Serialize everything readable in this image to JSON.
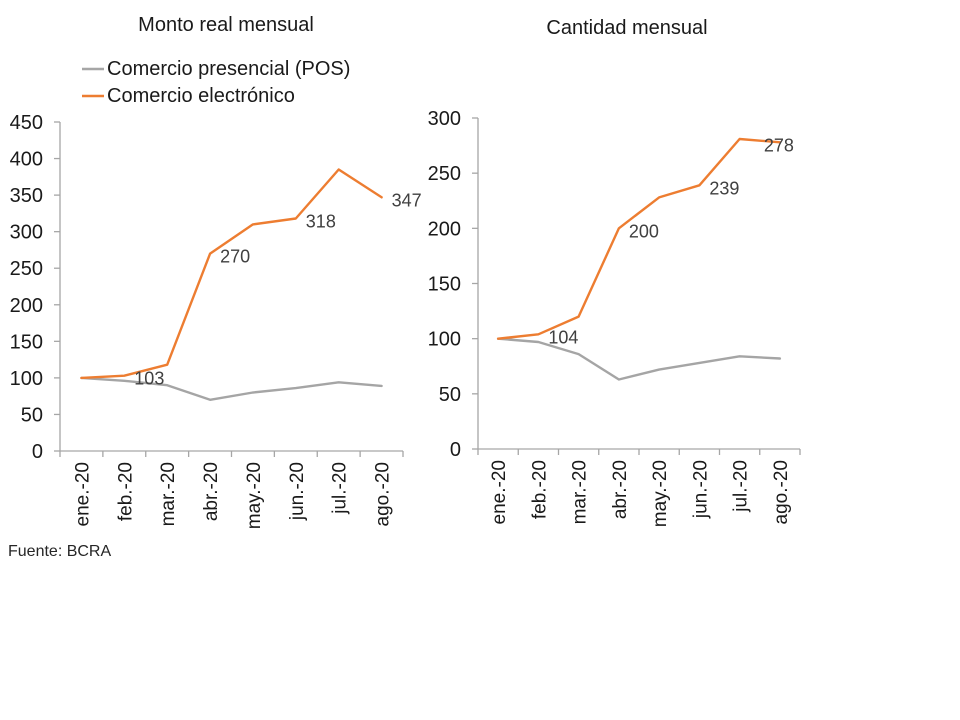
{
  "page": {
    "source_note": "Fuente: BCRA",
    "background_color": "#ffffff",
    "text_color": "#1a1a1a",
    "axis_color": "#a6a6a6",
    "data_label_color": "#404040"
  },
  "legend": {
    "items": [
      {
        "label": "Comercio presencial (POS)",
        "color": "#a6a6a6"
      },
      {
        "label": "Comercio electrónico",
        "color": "#ed7d31"
      }
    ]
  },
  "chart_data": [
    {
      "type": "line",
      "title": "Monto real mensual",
      "categories": [
        "ene.-20",
        "feb.-20",
        "mar.-20",
        "abr.-20",
        "may.-20",
        "jun.-20",
        "jul.-20",
        "ago.-20"
      ],
      "series": [
        {
          "name": "Comercio presencial (POS)",
          "color": "#a5a5a5",
          "values": [
            100,
            96,
            90,
            70,
            80,
            86,
            94,
            89
          ],
          "labeled_indices": []
        },
        {
          "name": "Comercio electrónico",
          "color": "#ed7d31",
          "values": [
            100,
            103,
            118,
            270,
            310,
            318,
            385,
            347
          ],
          "labeled_indices": [
            1,
            3,
            5,
            7
          ]
        }
      ],
      "data_labels": [
        103,
        270,
        318,
        347
      ],
      "ylim": [
        0,
        450
      ],
      "ytick_step": 50,
      "grid": false,
      "legend_position": "top-left"
    },
    {
      "type": "line",
      "title": "Cantidad mensual",
      "categories": [
        "ene.-20",
        "feb.-20",
        "mar.-20",
        "abr.-20",
        "may.-20",
        "jun.-20",
        "jul.-20",
        "ago.-20"
      ],
      "series": [
        {
          "name": "Comercio presencial (POS)",
          "color": "#a5a5a5",
          "values": [
            100,
            97,
            86,
            63,
            72,
            78,
            84,
            82
          ],
          "labeled_indices": []
        },
        {
          "name": "Comercio electrónico",
          "color": "#ed7d31",
          "values": [
            100,
            104,
            120,
            200,
            228,
            239,
            281,
            278
          ],
          "labeled_indices": [
            1,
            3,
            5,
            7
          ]
        }
      ],
      "data_labels": [
        104,
        200,
        239,
        278
      ],
      "ylim": [
        0,
        300
      ],
      "ytick_step": 50,
      "grid": false,
      "legend_position": "none"
    }
  ]
}
